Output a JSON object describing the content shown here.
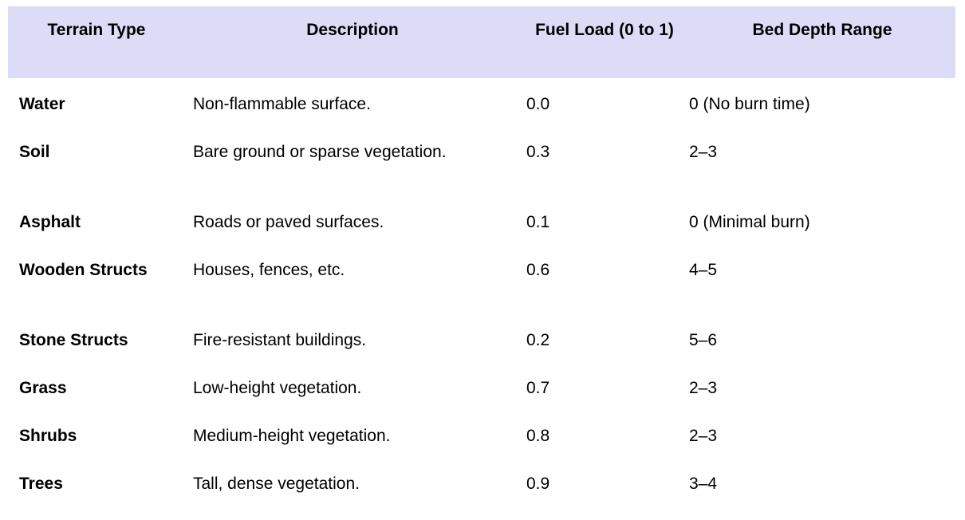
{
  "table": {
    "header_bg": "#dcdcf7",
    "columns": [
      "Terrain Type",
      "Description",
      "Fuel Load (0 to 1)",
      "Bed Depth Range"
    ],
    "rows": [
      {
        "terrain": "Water",
        "description": "Non-flammable surface.",
        "fuel_load": "0.0",
        "bed_depth": "0 (No burn time)"
      },
      {
        "terrain": "Soil",
        "description": "Bare ground or sparse vegetation.",
        "fuel_load": "0.3",
        "bed_depth": "2–3"
      },
      {
        "terrain": "Asphalt",
        "description": "Roads or paved surfaces.",
        "fuel_load": "0.1",
        "bed_depth": "0 (Minimal burn)"
      },
      {
        "terrain": "Wooden Structs",
        "description": "Houses, fences, etc.",
        "fuel_load": "0.6",
        "bed_depth": "4–5"
      },
      {
        "terrain": "Stone Structs",
        "description": "Fire-resistant buildings.",
        "fuel_load": "0.2",
        "bed_depth": "5–6"
      },
      {
        "terrain": "Grass",
        "description": "Low-height vegetation.",
        "fuel_load": "0.7",
        "bed_depth": "2–3"
      },
      {
        "terrain": "Shrubs",
        "description": "Medium-height vegetation.",
        "fuel_load": "0.8",
        "bed_depth": "2–3"
      },
      {
        "terrain": "Trees",
        "description": "Tall, dense vegetation.",
        "fuel_load": "0.9",
        "bed_depth": "3–4"
      }
    ]
  }
}
